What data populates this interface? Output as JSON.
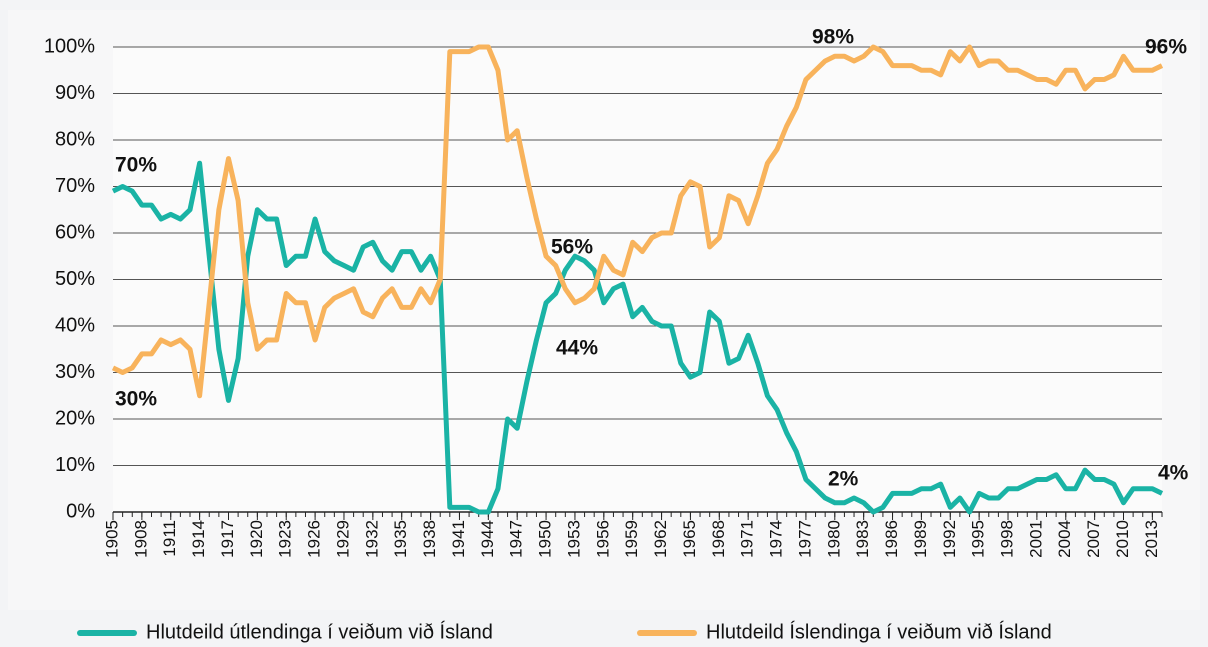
{
  "chart_data": {
    "type": "line",
    "x": [
      1905,
      1906,
      1907,
      1908,
      1909,
      1910,
      1911,
      1912,
      1913,
      1914,
      1915,
      1916,
      1917,
      1918,
      1919,
      1920,
      1921,
      1922,
      1923,
      1924,
      1925,
      1926,
      1927,
      1928,
      1929,
      1930,
      1931,
      1932,
      1933,
      1934,
      1935,
      1936,
      1937,
      1938,
      1939,
      1940,
      1941,
      1942,
      1943,
      1944,
      1945,
      1946,
      1947,
      1948,
      1949,
      1950,
      1951,
      1952,
      1953,
      1954,
      1955,
      1956,
      1957,
      1958,
      1959,
      1960,
      1961,
      1962,
      1963,
      1964,
      1965,
      1966,
      1967,
      1968,
      1969,
      1970,
      1971,
      1972,
      1973,
      1974,
      1975,
      1976,
      1977,
      1978,
      1979,
      1980,
      1981,
      1982,
      1983,
      1984,
      1985,
      1986,
      1987,
      1988,
      1989,
      1990,
      1991,
      1992,
      1993,
      1994,
      1995,
      1996,
      1997,
      1998,
      1999,
      2000,
      2001,
      2002,
      2003,
      2004,
      2005,
      2006,
      2007,
      2008,
      2009,
      2010,
      2011,
      2012,
      2013,
      2014
    ],
    "xlim": [
      1905,
      2014
    ],
    "xticks": [
      1905,
      1908,
      1911,
      1914,
      1917,
      1920,
      1923,
      1926,
      1929,
      1932,
      1935,
      1938,
      1941,
      1944,
      1947,
      1950,
      1953,
      1956,
      1959,
      1962,
      1965,
      1968,
      1971,
      1974,
      1977,
      1980,
      1983,
      1986,
      1989,
      1992,
      1995,
      1998,
      2001,
      2004,
      2007,
      2010,
      2013
    ],
    "ylim": [
      0,
      100
    ],
    "yticks": [
      {
        "value": 0,
        "label": "0%"
      },
      {
        "value": 10,
        "label": "10%"
      },
      {
        "value": 20,
        "label": "20%"
      },
      {
        "value": 30,
        "label": "30%"
      },
      {
        "value": 40,
        "label": "40%"
      },
      {
        "value": 50,
        "label": "50%"
      },
      {
        "value": 60,
        "label": "60%"
      },
      {
        "value": 70,
        "label": "70%"
      },
      {
        "value": 80,
        "label": "80%"
      },
      {
        "value": 90,
        "label": "90%"
      },
      {
        "value": 100,
        "label": "100%"
      }
    ],
    "grid": true,
    "legend": "bottom",
    "series": [
      {
        "name": "Hlutdeild útlendinga í veiðum við Ísland",
        "color": "#1ab3a5",
        "values": [
          69,
          70,
          69,
          66,
          66,
          63,
          64,
          63,
          65,
          75,
          55,
          35,
          24,
          33,
          55,
          65,
          63,
          63,
          53,
          55,
          55,
          63,
          56,
          54,
          53,
          52,
          57,
          58,
          54,
          52,
          56,
          56,
          52,
          55,
          50,
          1,
          1,
          1,
          0,
          0,
          5,
          20,
          18,
          28,
          37,
          45,
          47,
          52,
          55,
          54,
          52,
          45,
          48,
          49,
          42,
          44,
          41,
          40,
          40,
          32,
          29,
          30,
          43,
          41,
          32,
          33,
          38,
          32,
          25,
          22,
          17,
          13,
          7,
          5,
          3,
          2,
          2,
          3,
          2,
          0,
          1,
          4,
          4,
          4,
          5,
          5,
          6,
          1,
          3,
          0,
          4,
          3,
          3,
          5,
          5,
          6,
          7,
          7,
          8,
          5,
          5,
          9,
          7,
          7,
          6,
          2,
          5,
          5,
          5,
          4
        ]
      },
      {
        "name": "Hlutdeild Íslendinga í veiðum við Ísland",
        "color": "#f8b35c",
        "values": [
          31,
          30,
          31,
          34,
          34,
          37,
          36,
          37,
          35,
          25,
          45,
          65,
          76,
          67,
          45,
          35,
          37,
          37,
          47,
          45,
          45,
          37,
          44,
          46,
          47,
          48,
          43,
          42,
          46,
          48,
          44,
          44,
          48,
          45,
          50,
          99,
          99,
          99,
          100,
          100,
          95,
          80,
          82,
          72,
          63,
          55,
          53,
          48,
          45,
          46,
          48,
          55,
          52,
          51,
          58,
          56,
          59,
          60,
          60,
          68,
          71,
          70,
          57,
          59,
          68,
          67,
          62,
          68,
          75,
          78,
          83,
          87,
          93,
          95,
          97,
          98,
          98,
          97,
          98,
          100,
          99,
          96,
          96,
          96,
          95,
          95,
          94,
          99,
          97,
          100,
          96,
          97,
          97,
          95,
          95,
          94,
          93,
          93,
          92,
          95,
          95,
          91,
          93,
          93,
          94,
          98,
          95,
          95,
          95,
          96
        ]
      }
    ],
    "annotations": [
      "70%",
      "30%",
      "56%",
      "44%",
      "98%",
      "2%",
      "96%",
      "4%"
    ]
  }
}
